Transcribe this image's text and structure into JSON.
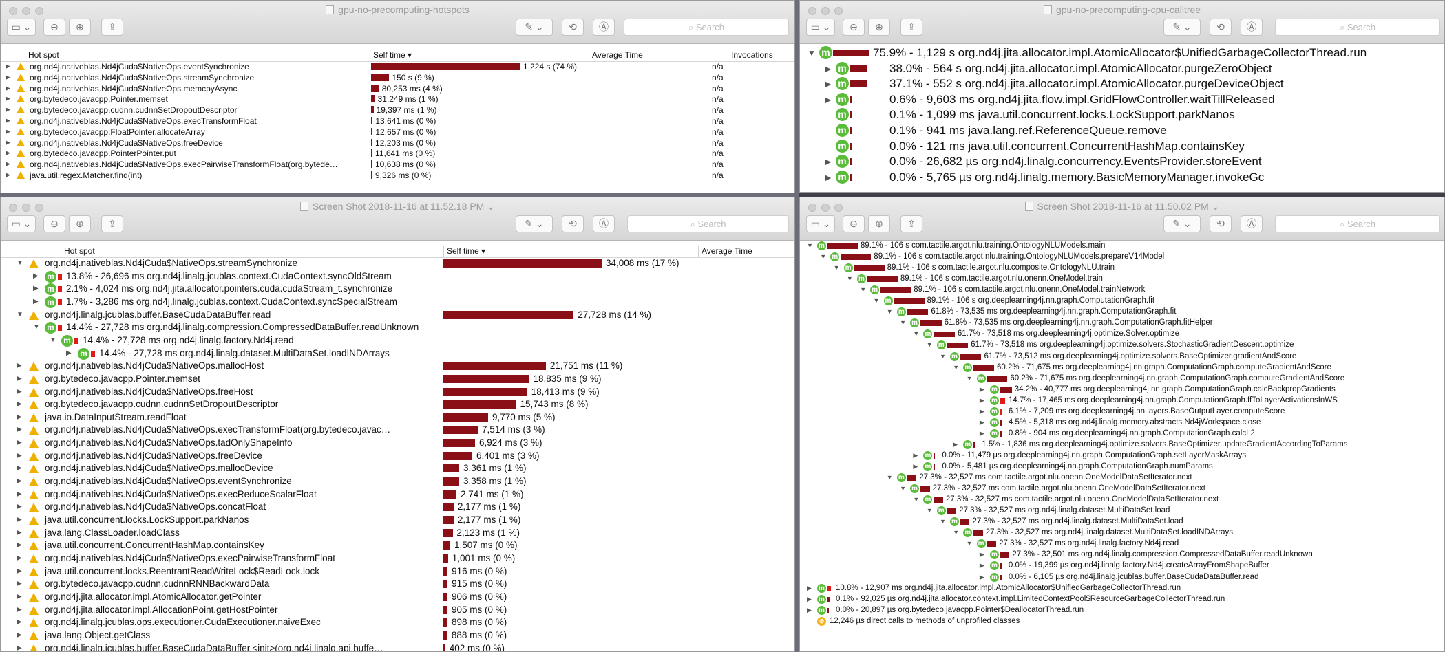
{
  "windows": {
    "w1": {
      "title": "gpu-no-precomputing-hotspots",
      "search_placeholder": "Search",
      "columns": {
        "hotspot": "Hot spot",
        "self_time": "Self time ▾",
        "avg": "Average Time",
        "inv": "Invocations"
      }
    },
    "w2": {
      "title": "gpu-no-precomputing-cpu-calltree",
      "search_placeholder": "Search"
    },
    "w3": {
      "title": "Screen Shot 2018-11-16 at 11.52.18 PM ⌄",
      "search_placeholder": "Search",
      "columns": {
        "hotspot": "Hot spot",
        "self_time": "Self time ▾",
        "avg": "Average Time"
      }
    },
    "w4": {
      "title": "Screen Shot 2018-11-16 at 11.50.02 PM ⌄",
      "search_placeholder": "Search"
    }
  },
  "hotspots_top": [
    {
      "name": "org.nd4j.nativeblas.Nd4jCuda$NativeOps.eventSynchronize",
      "time": "1,224 s (74 %)",
      "pct": 74,
      "inv": "n/a"
    },
    {
      "name": "org.nd4j.nativeblas.Nd4jCuda$NativeOps.streamSynchronize",
      "time": "150 s (9 %)",
      "pct": 9,
      "inv": "n/a"
    },
    {
      "name": "org.nd4j.nativeblas.Nd4jCuda$NativeOps.memcpyAsync",
      "time": "80,253 ms (4 %)",
      "pct": 4,
      "inv": "n/a"
    },
    {
      "name": "org.bytedeco.javacpp.Pointer.memset",
      "time": "31,249 ms (1 %)",
      "pct": 1.9,
      "inv": "n/a"
    },
    {
      "name": "org.bytedeco.javacpp.cudnn.cudnnSetDropoutDescriptor",
      "time": "19,397 ms (1 %)",
      "pct": 1.2,
      "inv": "n/a"
    },
    {
      "name": "org.nd4j.nativeblas.Nd4jCuda$NativeOps.execTransformFloat",
      "time": "13,641 ms (0 %)",
      "pct": 0.8,
      "inv": "n/a"
    },
    {
      "name": "org.bytedeco.javacpp.FloatPointer.allocateArray",
      "time": "12,657 ms (0 %)",
      "pct": 0.8,
      "inv": "n/a"
    },
    {
      "name": "org.nd4j.nativeblas.Nd4jCuda$NativeOps.freeDevice",
      "time": "12,203 ms (0 %)",
      "pct": 0.7,
      "inv": "n/a"
    },
    {
      "name": "org.bytedeco.javacpp.PointerPointer.put",
      "time": "11,641 ms (0 %)",
      "pct": 0.7,
      "inv": "n/a"
    },
    {
      "name": "org.nd4j.nativeblas.Nd4jCuda$NativeOps.execPairwiseTransformFloat(org.bytede…",
      "time": "10,638 ms (0 %)",
      "pct": 0.6,
      "inv": "n/a"
    },
    {
      "name": "java.util.regex.Matcher.find(int)",
      "time": "9,326 ms (0 %)",
      "pct": 0.6,
      "inv": "n/a"
    }
  ],
  "calltree_top": [
    {
      "tri": "▼",
      "icon": "m",
      "pct": 75.9,
      "text": "75.9% - 1,129 s org.nd4j.jita.allocator.impl.AtomicAllocator$UnifiedGarbageCollectorThread.run"
    },
    {
      "tri": "▶",
      "icon": "m",
      "pct": 38.0,
      "text": "38.0% - 564 s org.nd4j.jita.allocator.impl.AtomicAllocator.purgeZeroObject"
    },
    {
      "tri": "▶",
      "icon": "m",
      "pct": 37.1,
      "text": "37.1% - 552 s org.nd4j.jita.allocator.impl.AtomicAllocator.purgeDeviceObject"
    },
    {
      "tri": "▶",
      "icon": "m",
      "pct": 0.6,
      "text": "0.6% - 9,603 ms org.nd4j.jita.flow.impl.GridFlowController.waitTillReleased"
    },
    {
      "tri": "",
      "icon": "m",
      "pct": 0.1,
      "text": "0.1% - 1,099 ms java.util.concurrent.locks.LockSupport.parkNanos"
    },
    {
      "tri": "",
      "icon": "m",
      "pct": 0.1,
      "text": "0.1% - 941 ms java.lang.ref.ReferenceQueue.remove"
    },
    {
      "tri": "",
      "icon": "m",
      "pct": 0.0,
      "text": "0.0% - 121 ms java.util.concurrent.ConcurrentHashMap.containsKey"
    },
    {
      "tri": "▶",
      "icon": "m",
      "pct": 0.0,
      "text": "0.0% - 26,682 µs org.nd4j.linalg.concurrency.EventsProvider.storeEvent"
    },
    {
      "tri": "▶",
      "icon": "m",
      "pct": 0.0,
      "text": "0.0% - 5,765 µs org.nd4j.linalg.memory.BasicMemoryManager.invokeGc"
    }
  ],
  "hotspots_bottom": [
    {
      "lvl": 0,
      "tri": "▼",
      "icon": "w",
      "name": "org.nd4j.nativeblas.Nd4jCuda$NativeOps.streamSynchronize",
      "time": "34,008 ms (17 %)",
      "pct": 17
    },
    {
      "lvl": 1,
      "tri": "▶",
      "icon": "m",
      "text": "13.8% - 26,696 ms org.nd4j.linalg.jcublas.context.CudaContext.syncOldStream",
      "pct": 13.8
    },
    {
      "lvl": 1,
      "tri": "▶",
      "icon": "m",
      "text": "2.1% - 4,024 ms org.nd4j.jita.allocator.pointers.cuda.cudaStream_t.synchronize",
      "pct": 2.1
    },
    {
      "lvl": 1,
      "tri": "▶",
      "icon": "m",
      "text": "1.7% - 3,286 ms org.nd4j.linalg.jcublas.context.CudaContext.syncSpecialStream",
      "pct": 1.7
    },
    {
      "lvl": 0,
      "tri": "▼",
      "icon": "w",
      "name": "org.nd4j.linalg.jcublas.buffer.BaseCudaDataBuffer.read",
      "time": "27,728 ms (14 %)",
      "pct": 14
    },
    {
      "lvl": 1,
      "tri": "▼",
      "icon": "m",
      "text": "14.4% - 27,728 ms org.nd4j.linalg.compression.CompressedDataBuffer.readUnknown",
      "pct": 14.4
    },
    {
      "lvl": 2,
      "tri": "▼",
      "icon": "m",
      "text": "14.4% - 27,728 ms org.nd4j.linalg.factory.Nd4j.read",
      "pct": 14.4
    },
    {
      "lvl": 3,
      "tri": "▶",
      "icon": "m",
      "text": "14.4% - 27,728 ms org.nd4j.linalg.dataset.MultiDataSet.loadINDArrays",
      "pct": 14.4
    },
    {
      "lvl": 0,
      "tri": "▶",
      "icon": "w",
      "name": "org.nd4j.nativeblas.Nd4jCuda$NativeOps.mallocHost",
      "time": "21,751 ms (11 %)",
      "pct": 11
    },
    {
      "lvl": 0,
      "tri": "▶",
      "icon": "w",
      "name": "org.bytedeco.javacpp.Pointer.memset",
      "time": "18,835 ms (9 %)",
      "pct": 9.2
    },
    {
      "lvl": 0,
      "tri": "▶",
      "icon": "w",
      "name": "org.nd4j.nativeblas.Nd4jCuda$NativeOps.freeHost",
      "time": "18,413 ms (9 %)",
      "pct": 9
    },
    {
      "lvl": 0,
      "tri": "▶",
      "icon": "w",
      "name": "org.bytedeco.javacpp.cudnn.cudnnSetDropoutDescriptor",
      "time": "15,743 ms (8 %)",
      "pct": 7.8
    },
    {
      "lvl": 0,
      "tri": "▶",
      "icon": "w",
      "name": "java.io.DataInputStream.readFloat",
      "time": "9,770 ms (5 %)",
      "pct": 4.8
    },
    {
      "lvl": 0,
      "tri": "▶",
      "icon": "w",
      "name": "org.nd4j.nativeblas.Nd4jCuda$NativeOps.execTransformFloat(org.bytedeco.javac…",
      "time": "7,514 ms (3 %)",
      "pct": 3.7
    },
    {
      "lvl": 0,
      "tri": "▶",
      "icon": "w",
      "name": "org.nd4j.nativeblas.Nd4jCuda$NativeOps.tadOnlyShapeInfo",
      "time": "6,924 ms (3 %)",
      "pct": 3.4
    },
    {
      "lvl": 0,
      "tri": "▶",
      "icon": "w",
      "name": "org.nd4j.nativeblas.Nd4jCuda$NativeOps.freeDevice",
      "time": "6,401 ms (3 %)",
      "pct": 3.1
    },
    {
      "lvl": 0,
      "tri": "▶",
      "icon": "w",
      "name": "org.nd4j.nativeblas.Nd4jCuda$NativeOps.mallocDevice",
      "time": "3,361 ms (1 %)",
      "pct": 1.7
    },
    {
      "lvl": 0,
      "tri": "▶",
      "icon": "w",
      "name": "org.nd4j.nativeblas.Nd4jCuda$NativeOps.eventSynchronize",
      "time": "3,358 ms (1 %)",
      "pct": 1.7
    },
    {
      "lvl": 0,
      "tri": "▶",
      "icon": "w",
      "name": "org.nd4j.nativeblas.Nd4jCuda$NativeOps.execReduceScalarFloat",
      "time": "2,741 ms (1 %)",
      "pct": 1.4
    },
    {
      "lvl": 0,
      "tri": "▶",
      "icon": "w",
      "name": "org.nd4j.nativeblas.Nd4jCuda$NativeOps.concatFloat",
      "time": "2,177 ms (1 %)",
      "pct": 1.1
    },
    {
      "lvl": 0,
      "tri": "▶",
      "icon": "w",
      "name": "java.util.concurrent.locks.LockSupport.parkNanos",
      "time": "2,177 ms (1 %)",
      "pct": 1.1
    },
    {
      "lvl": 0,
      "tri": "▶",
      "icon": "w",
      "name": "java.lang.ClassLoader.loadClass",
      "time": "2,123 ms (1 %)",
      "pct": 1.0
    },
    {
      "lvl": 0,
      "tri": "▶",
      "icon": "w",
      "name": "java.util.concurrent.ConcurrentHashMap.containsKey",
      "time": "1,507 ms (0 %)",
      "pct": 0.74
    },
    {
      "lvl": 0,
      "tri": "▶",
      "icon": "w",
      "name": "org.nd4j.nativeblas.Nd4jCuda$NativeOps.execPairwiseTransformFloat",
      "time": "1,001 ms (0 %)",
      "pct": 0.5
    },
    {
      "lvl": 0,
      "tri": "▶",
      "icon": "w",
      "name": "java.util.concurrent.locks.ReentrantReadWriteLock$ReadLock.lock",
      "time": "916 ms (0 %)",
      "pct": 0.45
    },
    {
      "lvl": 0,
      "tri": "▶",
      "icon": "w",
      "name": "org.bytedeco.javacpp.cudnn.cudnnRNNBackwardData",
      "time": "915 ms (0 %)",
      "pct": 0.45
    },
    {
      "lvl": 0,
      "tri": "▶",
      "icon": "w",
      "name": "org.nd4j.jita.allocator.impl.AtomicAllocator.getPointer",
      "time": "906 ms (0 %)",
      "pct": 0.44
    },
    {
      "lvl": 0,
      "tri": "▶",
      "icon": "w",
      "name": "org.nd4j.jita.allocator.impl.AllocationPoint.getHostPointer",
      "time": "905 ms (0 %)",
      "pct": 0.44
    },
    {
      "lvl": 0,
      "tri": "▶",
      "icon": "w",
      "name": "org.nd4j.linalg.jcublas.ops.executioner.CudaExecutioner.naiveExec",
      "time": "898 ms (0 %)",
      "pct": 0.44
    },
    {
      "lvl": 0,
      "tri": "▶",
      "icon": "w",
      "name": "java.lang.Object.getClass",
      "time": "888 ms (0 %)",
      "pct": 0.43
    },
    {
      "lvl": 0,
      "tri": "▶",
      "icon": "w",
      "name": "org.nd4j.linalg.jcublas.buffer.BaseCudaDataBuffer.<init>(org.nd4j.linalg.api.buffe…",
      "time": "402 ms (0 %)",
      "pct": 0.2
    }
  ],
  "calltree_bottom": [
    {
      "lvl": 0,
      "tri": "▼",
      "pct": 89.1,
      "text": "89.1% - 106 s com.tactile.argot.nlu.training.OntologyNLUModels.main"
    },
    {
      "lvl": 1,
      "tri": "▼",
      "pct": 89.1,
      "text": "89.1% - 106 s com.tactile.argot.nlu.training.OntologyNLUModels.prepareV14Model"
    },
    {
      "lvl": 2,
      "tri": "▼",
      "pct": 89.1,
      "text": "89.1% - 106 s com.tactile.argot.nlu.composite.OntologyNLU.train"
    },
    {
      "lvl": 3,
      "tri": "▼",
      "pct": 89.1,
      "text": "89.1% - 106 s com.tactile.argot.nlu.onenn.OneModel.train"
    },
    {
      "lvl": 4,
      "tri": "▼",
      "pct": 89.1,
      "text": "89.1% - 106 s com.tactile.argot.nlu.onenn.OneModel.trainNetwork"
    },
    {
      "lvl": 5,
      "tri": "▼",
      "pct": 89.1,
      "text": "89.1% - 106 s org.deeplearning4j.nn.graph.ComputationGraph.fit"
    },
    {
      "lvl": 6,
      "tri": "▼",
      "pct": 61.8,
      "text": "61.8% - 73,535 ms org.deeplearning4j.nn.graph.ComputationGraph.fit"
    },
    {
      "lvl": 7,
      "tri": "▼",
      "pct": 61.8,
      "text": "61.8% - 73,535 ms org.deeplearning4j.nn.graph.ComputationGraph.fitHelper"
    },
    {
      "lvl": 8,
      "tri": "▼",
      "pct": 61.7,
      "text": "61.7% - 73,518 ms org.deeplearning4j.optimize.Solver.optimize"
    },
    {
      "lvl": 9,
      "tri": "▼",
      "pct": 61.7,
      "text": "61.7% - 73,518 ms org.deeplearning4j.optimize.solvers.StochasticGradientDescent.optimize"
    },
    {
      "lvl": 10,
      "tri": "▼",
      "pct": 61.7,
      "text": "61.7% - 73,512 ms org.deeplearning4j.optimize.solvers.BaseOptimizer.gradientAndScore"
    },
    {
      "lvl": 11,
      "tri": "▼",
      "pct": 60.2,
      "text": "60.2% - 71,675 ms org.deeplearning4j.nn.graph.ComputationGraph.computeGradientAndScore"
    },
    {
      "lvl": 12,
      "tri": "▼",
      "pct": 60.2,
      "text": "60.2% - 71,675 ms org.deeplearning4j.nn.graph.ComputationGraph.computeGradientAndScore"
    },
    {
      "lvl": 13,
      "tri": "▶",
      "pct": 34.2,
      "text": "34.2% - 40,777 ms org.deeplearning4j.nn.graph.ComputationGraph.calcBackpropGradients"
    },
    {
      "lvl": 13,
      "tri": "▶",
      "pct": 14.7,
      "text": "14.7% - 17,465 ms org.deeplearning4j.nn.graph.ComputationGraph.ffToLayerActivationsInWS",
      "red": true
    },
    {
      "lvl": 13,
      "tri": "▶",
      "pct": 6.1,
      "text": "6.1% - 7,209 ms org.deeplearning4j.nn.layers.BaseOutputLayer.computeScore",
      "red": true
    },
    {
      "lvl": 13,
      "tri": "▶",
      "pct": 4.5,
      "text": "4.5% - 5,318 ms org.nd4j.linalg.memory.abstracts.Nd4jWorkspace.close"
    },
    {
      "lvl": 13,
      "tri": "▶",
      "pct": 0.8,
      "text": "0.8% - 904 ms org.deeplearning4j.nn.graph.ComputationGraph.calcL2"
    },
    {
      "lvl": 11,
      "tri": "▶",
      "pct": 1.5,
      "text": "1.5% - 1,836 ms org.deeplearning4j.optimize.solvers.BaseOptimizer.updateGradientAccordingToParams"
    },
    {
      "lvl": 8,
      "tri": "▶",
      "pct": 0.0,
      "text": "0.0% - 11,479 µs org.deeplearning4j.nn.graph.ComputationGraph.setLayerMaskArrays"
    },
    {
      "lvl": 8,
      "tri": "▶",
      "pct": 0.0,
      "text": "0.0% - 5,481 µs org.deeplearning4j.nn.graph.ComputationGraph.numParams"
    },
    {
      "lvl": 6,
      "tri": "▼",
      "pct": 27.3,
      "text": "27.3% - 32,527 ms com.tactile.argot.nlu.onenn.OneModelDataSetIterator.next"
    },
    {
      "lvl": 7,
      "tri": "▼",
      "pct": 27.3,
      "text": "27.3% - 32,527 ms com.tactile.argot.nlu.onenn.OneModelDataSetIterator.next"
    },
    {
      "lvl": 8,
      "tri": "▼",
      "pct": 27.3,
      "text": "27.3% - 32,527 ms com.tactile.argot.nlu.onenn.OneModelDataSetIterator.next"
    },
    {
      "lvl": 9,
      "tri": "▼",
      "pct": 27.3,
      "text": "27.3% - 32,527 ms org.nd4j.linalg.dataset.MultiDataSet.load"
    },
    {
      "lvl": 10,
      "tri": "▼",
      "pct": 27.3,
      "text": "27.3% - 32,527 ms org.nd4j.linalg.dataset.MultiDataSet.load"
    },
    {
      "lvl": 11,
      "tri": "▼",
      "pct": 27.3,
      "text": "27.3% - 32,527 ms org.nd4j.linalg.dataset.MultiDataSet.loadINDArrays"
    },
    {
      "lvl": 12,
      "tri": "▼",
      "pct": 27.3,
      "text": "27.3% - 32,527 ms org.nd4j.linalg.factory.Nd4j.read"
    },
    {
      "lvl": 13,
      "tri": "▶",
      "pct": 27.3,
      "text": "27.3% - 32,501 ms org.nd4j.linalg.compression.CompressedDataBuffer.readUnknown"
    },
    {
      "lvl": 13,
      "tri": "▶",
      "pct": 0.0,
      "text": "0.0% - 19,399 µs org.nd4j.linalg.factory.Nd4j.createArrayFromShapeBuffer"
    },
    {
      "lvl": 13,
      "tri": "▶",
      "pct": 0.0,
      "text": "0.0% - 6,105 µs org.nd4j.linalg.jcublas.buffer.BaseCudaDataBuffer.read"
    },
    {
      "lvl": 0,
      "tri": "▶",
      "pct": 10.8,
      "text": "10.8% - 12,907 ms org.nd4j.jita.allocator.impl.AtomicAllocator$UnifiedGarbageCollectorThread.run",
      "red": true
    },
    {
      "lvl": 0,
      "tri": "▶",
      "pct": 0.1,
      "text": "0.1% - 92,025 µs org.nd4j.jita.allocator.context.impl.LimitedContextPool$ResourceGarbageCollectorThread.run"
    },
    {
      "lvl": 0,
      "tri": "▶",
      "pct": 0.0,
      "text": "0.0% - 20,897 µs org.bytedeco.javacpp.Pointer$DeallocatorThread.run"
    },
    {
      "lvl": 0,
      "tri": "",
      "pct": -1,
      "text": "12,246 µs direct calls to methods of unprofiled classes",
      "unprof": true
    }
  ]
}
